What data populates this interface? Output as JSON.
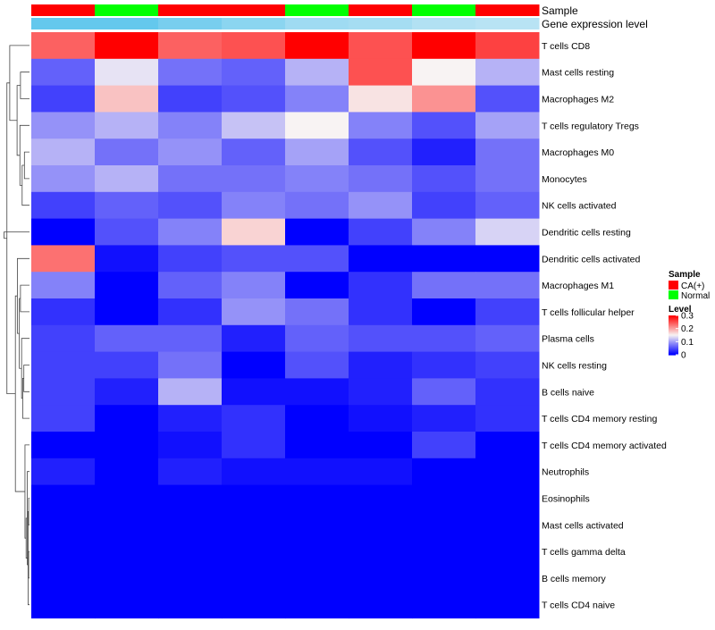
{
  "chart_data": {
    "type": "heatmap",
    "annotation_rows": [
      "Sample",
      "Gene expression level"
    ],
    "samples": [
      "CA(+)",
      "Normal",
      "CA(+)",
      "CA(+)",
      "Normal",
      "CA(+)",
      "Normal",
      "CA(+)"
    ],
    "expression_level": [
      0.95,
      0.95,
      0.8,
      0.65,
      0.5,
      0.45,
      0.35,
      0.3
    ],
    "row_labels": [
      "T cells CD8",
      "Mast cells resting",
      "Macrophages M2",
      "T cells regulatory  Tregs",
      "Macrophages M0",
      "Monocytes",
      "NK cells activated",
      "Dendritic cells resting",
      "Dendritic cells activated",
      "Macrophages M1",
      "T cells follicular helper",
      "Plasma cells",
      "NK cells resting",
      "B cells naive",
      "T cells CD4 memory resting",
      "T cells CD4 memory activated",
      "Neutrophils",
      "Eosinophils",
      "Mast cells activated",
      "T cells gamma delta",
      "B cells memory",
      "T cells CD4 naive"
    ],
    "values": [
      [
        0.24,
        0.3,
        0.24,
        0.25,
        0.3,
        0.25,
        0.3,
        0.26
      ],
      [
        0.06,
        0.14,
        0.07,
        0.06,
        0.11,
        0.25,
        0.15,
        0.11
      ],
      [
        0.04,
        0.18,
        0.04,
        0.05,
        0.08,
        0.16,
        0.21,
        0.05
      ],
      [
        0.09,
        0.11,
        0.08,
        0.12,
        0.15,
        0.08,
        0.05,
        0.1
      ],
      [
        0.11,
        0.07,
        0.09,
        0.06,
        0.1,
        0.05,
        0.02,
        0.07
      ],
      [
        0.09,
        0.11,
        0.07,
        0.07,
        0.08,
        0.07,
        0.05,
        0.07
      ],
      [
        0.04,
        0.06,
        0.05,
        0.08,
        0.07,
        0.09,
        0.04,
        0.06
      ],
      [
        0.0,
        0.05,
        0.08,
        0.17,
        0.0,
        0.04,
        0.08,
        0.13
      ],
      [
        0.23,
        0.01,
        0.04,
        0.05,
        0.05,
        0.0,
        0.0,
        0.0
      ],
      [
        0.08,
        0.0,
        0.06,
        0.08,
        0.0,
        0.03,
        0.07,
        0.07
      ],
      [
        0.03,
        0.0,
        0.03,
        0.09,
        0.07,
        0.03,
        0.0,
        0.04
      ],
      [
        0.04,
        0.06,
        0.06,
        0.02,
        0.06,
        0.05,
        0.05,
        0.06
      ],
      [
        0.04,
        0.04,
        0.07,
        0.0,
        0.05,
        0.02,
        0.03,
        0.04
      ],
      [
        0.04,
        0.02,
        0.11,
        0.01,
        0.01,
        0.02,
        0.06,
        0.03
      ],
      [
        0.04,
        0.0,
        0.02,
        0.03,
        0.0,
        0.01,
        0.02,
        0.03
      ],
      [
        0.0,
        0.0,
        0.01,
        0.03,
        0.0,
        0.0,
        0.04,
        0.0
      ],
      [
        0.02,
        0.0,
        0.02,
        0.01,
        0.01,
        0.01,
        0.0,
        0.0
      ],
      [
        0.0,
        0.0,
        0.0,
        0.0,
        0.0,
        0.0,
        0.0,
        0.0
      ],
      [
        0.0,
        0.0,
        0.0,
        0.0,
        0.0,
        0.0,
        0.0,
        0.0
      ],
      [
        0.0,
        0.0,
        0.0,
        0.0,
        0.0,
        0.0,
        0.0,
        0.0
      ],
      [
        0.0,
        0.0,
        0.0,
        0.0,
        0.0,
        0.0,
        0.0,
        0.0
      ],
      [
        0.0,
        0.0,
        0.0,
        0.0,
        0.0,
        0.0,
        0.0,
        0.0
      ]
    ],
    "color_scale": {
      "range": [
        0,
        0.3
      ],
      "stops": [
        {
          "value": 0.0,
          "color": "#0000ff"
        },
        {
          "value": 0.15,
          "color": "#f8f3f3"
        },
        {
          "value": 0.3,
          "color": "#ff0000"
        }
      ]
    },
    "expression_colors": {
      "low": "#dff0f7",
      "high": "#5ec6ec"
    },
    "legend": {
      "sample_title": "Sample",
      "sample_items": [
        {
          "label": "CA(+)",
          "color": "#ff0000"
        },
        {
          "label": "Normal",
          "color": "#00ff00"
        }
      ],
      "level_title": "Level",
      "level_ticks": [
        {
          "value": 0.3,
          "label": "0.3"
        },
        {
          "value": 0.2,
          "label": "0.2"
        },
        {
          "value": 0.1,
          "label": "0.1"
        },
        {
          "value": 0,
          "label": "0"
        }
      ],
      "placement": "right"
    },
    "row_dendrogram": {
      "merges": [
        [
          17,
          18,
          0.3
        ],
        [
          19,
          20,
          0.3
        ],
        [
          -1,
          21,
          0.5
        ],
        [
          -2,
          16,
          0.8
        ],
        [
          -3,
          -4,
          1.2
        ],
        [
          15,
          -5,
          1.6
        ],
        [
          12,
          13,
          2.0
        ],
        [
          14,
          -7,
          2.4
        ],
        [
          11,
          -8,
          2.8
        ],
        [
          9,
          10,
          3.2
        ],
        [
          -10,
          -9,
          3.6
        ],
        [
          8,
          -11,
          4.3
        ],
        [
          -12,
          -6,
          5.0
        ],
        [
          4,
          5,
          1.8
        ],
        [
          -14,
          6,
          2.6
        ],
        [
          3,
          -15,
          3.4
        ],
        [
          1,
          2,
          3.2
        ],
        [
          -17,
          -16,
          4.4
        ],
        [
          0,
          -18,
          7.0
        ],
        [
          -19,
          -13,
          8.0
        ],
        [
          7,
          -20,
          9.0
        ]
      ],
      "max_height": 9.5
    }
  }
}
